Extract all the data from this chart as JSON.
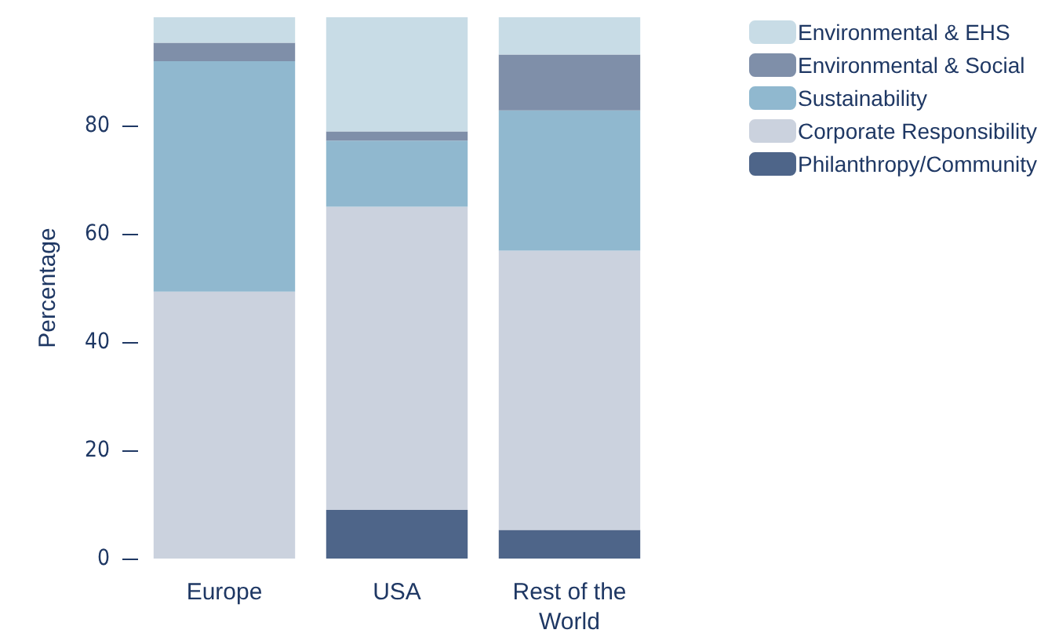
{
  "chart_data": {
    "type": "bar",
    "stacked": true,
    "ylabel": "Percentage",
    "categories": [
      "Europe",
      "USA",
      "Rest of the\nWorld"
    ],
    "series": [
      {
        "name": "Philanthropy/Community",
        "color": "#4e6589",
        "values": [
          0,
          9,
          5.3
        ]
      },
      {
        "name": "Corporate Responsibility",
        "color": "#cbd2de",
        "values": [
          49.3,
          56,
          51.6
        ]
      },
      {
        "name": "Sustainability",
        "color": "#90b8cf",
        "values": [
          42.6,
          12.2,
          25.9
        ]
      },
      {
        "name": "Environmental & Social",
        "color": "#7f8fa9",
        "values": [
          3.4,
          1.7,
          10.3
        ]
      },
      {
        "name": "Environmental & EHS",
        "color": "#c8dce6",
        "values": [
          4.7,
          21.1,
          6.9
        ]
      }
    ],
    "ylim": [
      0,
      100
    ],
    "yticks": [
      0,
      20,
      40,
      60,
      80
    ],
    "grid": false,
    "legend": "top right"
  }
}
